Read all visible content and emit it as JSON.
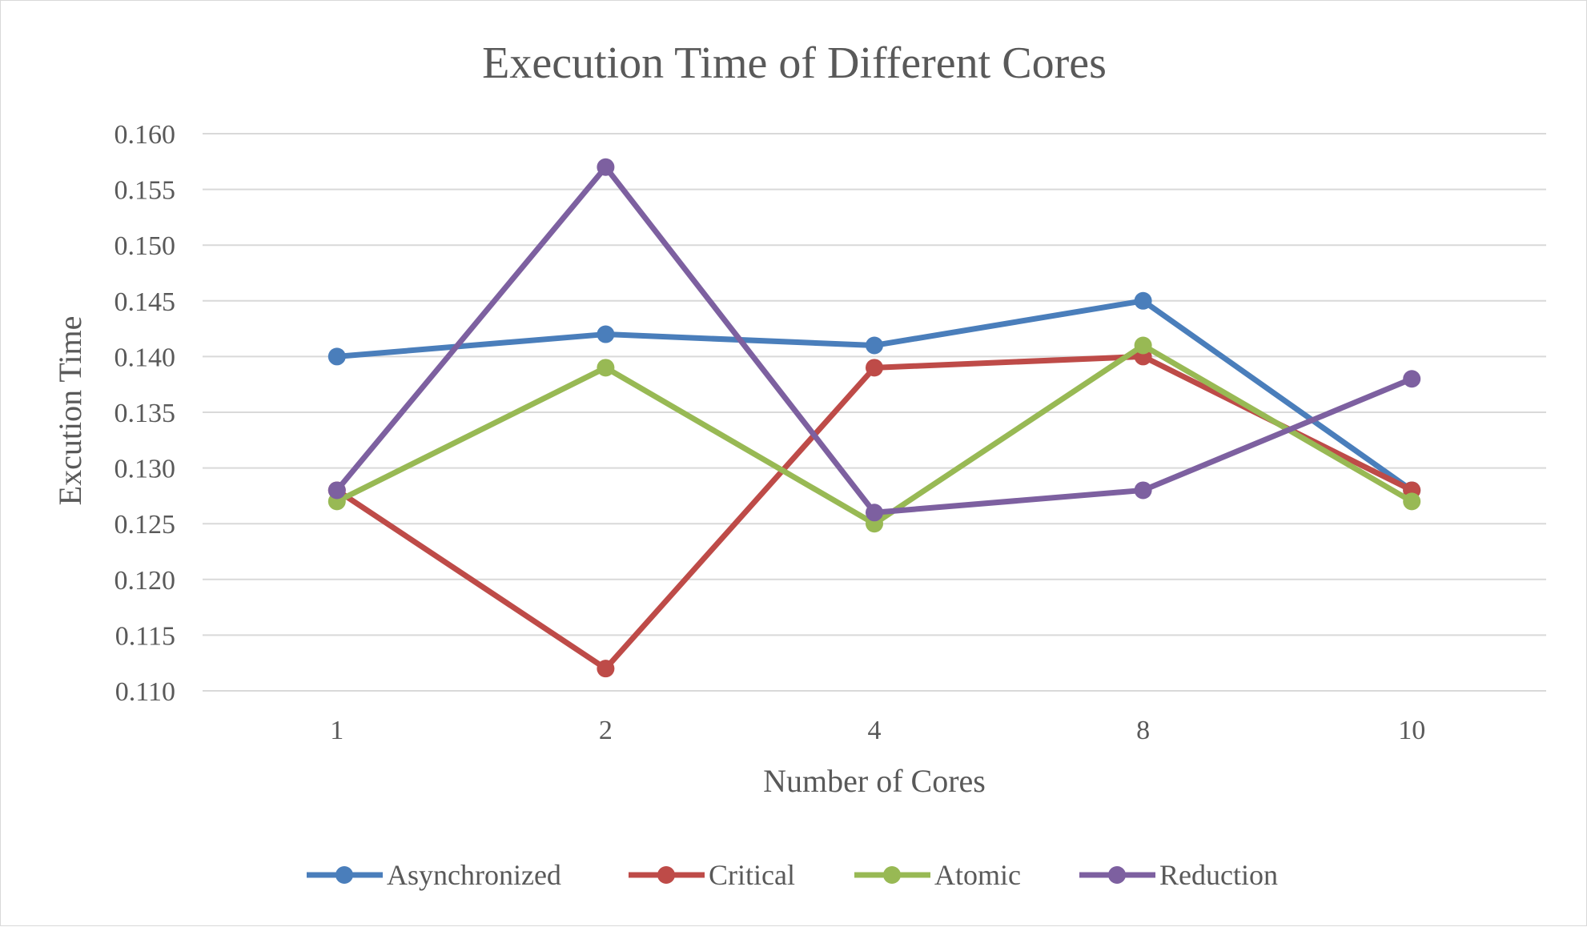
{
  "chart_data": {
    "type": "line",
    "title": "Execution Time of Different Cores",
    "xlabel": "Number of Cores",
    "ylabel": "Excution Time",
    "categories": [
      "1",
      "2",
      "4",
      "8",
      "10"
    ],
    "ylim": [
      0.11,
      0.16
    ],
    "yticks": [
      "0.110",
      "0.115",
      "0.120",
      "0.125",
      "0.130",
      "0.135",
      "0.140",
      "0.145",
      "0.150",
      "0.155",
      "0.160"
    ],
    "grid": true,
    "legend": "bottom",
    "series": [
      {
        "name": "Asynchronized",
        "color": "#4a7ebb",
        "values": [
          0.14,
          0.142,
          0.141,
          0.145,
          0.128
        ]
      },
      {
        "name": "Critical",
        "color": "#be4b48",
        "values": [
          0.128,
          0.112,
          0.139,
          0.14,
          0.128
        ]
      },
      {
        "name": "Atomic",
        "color": "#98b954",
        "values": [
          0.127,
          0.139,
          0.125,
          0.141,
          0.127
        ]
      },
      {
        "name": "Reduction",
        "color": "#7d60a0",
        "values": [
          0.128,
          0.157,
          0.126,
          0.128,
          0.138
        ]
      }
    ]
  }
}
